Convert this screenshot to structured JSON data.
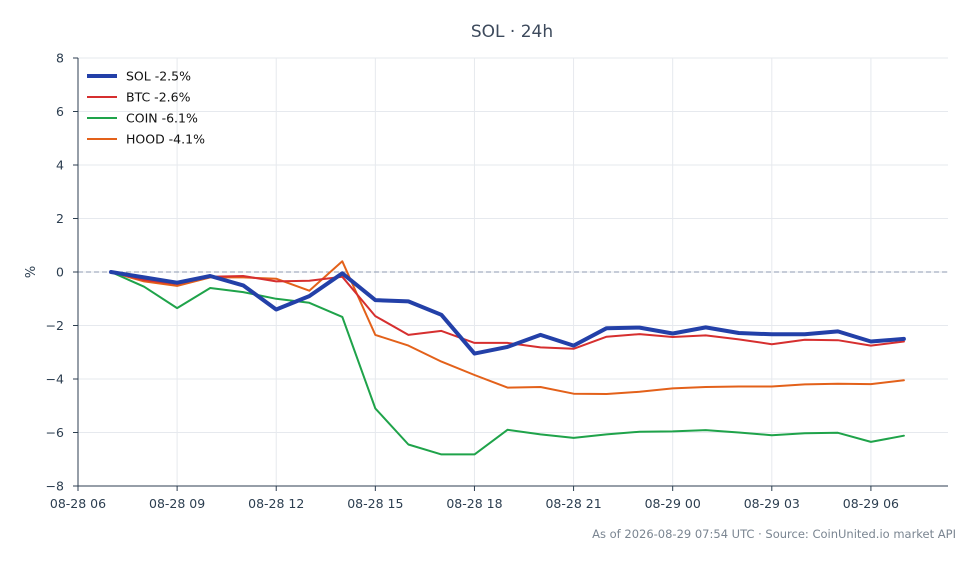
{
  "chart_data": {
    "type": "line",
    "title": "SOL · 24h",
    "xlabel": "",
    "ylabel": "%",
    "ylim": [
      -8,
      8
    ],
    "yticks": [
      -8,
      -6,
      -4,
      -2,
      0,
      2,
      4,
      6,
      8
    ],
    "xlim": [
      "2026-08-28 06:00",
      "2026-08-29 08:20"
    ],
    "xticks": [
      "08-28 06",
      "08-28 09",
      "08-28 12",
      "08-28 15",
      "08-28 18",
      "08-28 21",
      "08-29 00",
      "08-29 03",
      "08-29 06"
    ],
    "x": [
      "2026-08-28 07:00",
      "2026-08-28 08:00",
      "2026-08-28 09:00",
      "2026-08-28 10:00",
      "2026-08-28 11:00",
      "2026-08-28 12:00",
      "2026-08-28 13:00",
      "2026-08-28 14:00",
      "2026-08-28 15:00",
      "2026-08-28 16:00",
      "2026-08-28 17:00",
      "2026-08-28 18:00",
      "2026-08-28 19:00",
      "2026-08-28 20:00",
      "2026-08-28 21:00",
      "2026-08-28 22:00",
      "2026-08-28 23:00",
      "2026-08-29 00:00",
      "2026-08-29 01:00",
      "2026-08-29 02:00",
      "2026-08-29 03:00",
      "2026-08-29 04:00",
      "2026-08-29 05:00",
      "2026-08-29 06:00",
      "2026-08-29 07:00"
    ],
    "baseline": 0,
    "grid": true,
    "legend_position": "top-left",
    "series": [
      {
        "name": "SOL -2.5%",
        "color": "#2340a8",
        "width": 4,
        "values": [
          0.0,
          -0.2,
          -0.4,
          -0.15,
          -0.5,
          -1.4,
          -0.9,
          -0.05,
          -1.05,
          -1.1,
          -1.6,
          -3.05,
          -2.8,
          -2.35,
          -2.75,
          -2.1,
          -2.08,
          -2.3,
          -2.07,
          -2.28,
          -2.33,
          -2.33,
          -2.22,
          -2.6,
          -2.5
        ]
      },
      {
        "name": "BTC -2.6%",
        "color": "#d62f2f",
        "width": 2,
        "values": [
          0.0,
          -0.3,
          -0.45,
          -0.18,
          -0.15,
          -0.35,
          -0.33,
          -0.18,
          -1.65,
          -2.35,
          -2.2,
          -2.65,
          -2.65,
          -2.82,
          -2.87,
          -2.42,
          -2.32,
          -2.43,
          -2.37,
          -2.52,
          -2.7,
          -2.53,
          -2.55,
          -2.75,
          -2.6
        ]
      },
      {
        "name": "COIN -6.1%",
        "color": "#1fa34a",
        "width": 2,
        "values": [
          0.0,
          -0.55,
          -1.35,
          -0.6,
          -0.75,
          -1.0,
          -1.15,
          -1.68,
          -5.1,
          -6.45,
          -6.82,
          -6.82,
          -5.9,
          -6.07,
          -6.2,
          -6.07,
          -5.97,
          -5.96,
          -5.91,
          -6.0,
          -6.1,
          -6.03,
          -6.01,
          -6.35,
          -6.12
        ]
      },
      {
        "name": "HOOD -4.1%",
        "color": "#e3611a",
        "width": 2,
        "values": [
          0.0,
          -0.35,
          -0.52,
          -0.2,
          -0.2,
          -0.25,
          -0.7,
          0.4,
          -2.35,
          -2.75,
          -3.35,
          -3.85,
          -4.32,
          -4.3,
          -4.55,
          -4.56,
          -4.48,
          -4.35,
          -4.3,
          -4.28,
          -4.28,
          -4.2,
          -4.18,
          -4.19,
          -4.05
        ]
      }
    ]
  },
  "footer": "As of 2026-08-29 07:54 UTC · Source: CoinUnited.io market API"
}
